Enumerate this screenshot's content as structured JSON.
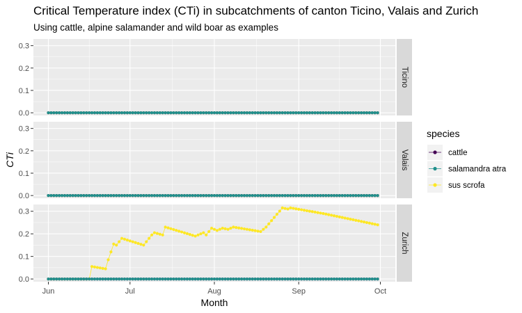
{
  "chart_data": {
    "type": "line",
    "title": "Critical Temperature index (CTi) in subcatchments of canton Ticino, Valais and Zurich",
    "subtitle": "Using cattle, alpine salamander and wild boar as examples",
    "xlabel": "Month",
    "ylabel": "CTi",
    "x_ticks": [
      "Jun",
      "Jul",
      "Aug",
      "Sep",
      "Oct"
    ],
    "x_range": [
      "2020-06-01",
      "2020-10-01"
    ],
    "y_ticks": [
      "0.0",
      "0.1",
      "0.2",
      "0.3"
    ],
    "ylim": [
      -0.012,
      0.33
    ],
    "grid": true,
    "legend": {
      "title": "species",
      "position": "right",
      "entries": [
        "cattle",
        "salamandra atra",
        "sus scrofa"
      ]
    },
    "facets": [
      "Ticino",
      "Valais",
      "Zurich"
    ],
    "colors": {
      "cattle": "#440154",
      "salamandra atra": "#21908C",
      "sus scrofa": "#FDE725",
      "panel_bg": "#EBEBEB",
      "strip_bg": "#D9D9D9",
      "grid": "#FFFFFF",
      "tick_text": "#4D4D4D"
    },
    "series": [
      {
        "name": "cattle",
        "facet": "all",
        "x_start": "2020-06-01",
        "x_end": "2020-09-30",
        "value": 0
      },
      {
        "name": "salamandra atra",
        "facet": "all",
        "x_start": "2020-06-01",
        "x_end": "2020-09-30",
        "value": 0
      },
      {
        "name": "sus scrofa",
        "facet": "Ticino",
        "x_start": "2020-06-01",
        "x_end": "2020-09-30",
        "value": 0
      },
      {
        "name": "sus scrofa",
        "facet": "Valais",
        "x_start": "2020-06-01",
        "x_end": "2020-09-30",
        "value": 0
      },
      {
        "name": "sus scrofa",
        "facet": "Zurich",
        "points": [
          [
            "2020-06-01",
            0
          ],
          [
            "2020-06-16",
            0
          ],
          [
            "2020-06-17",
            0.055
          ],
          [
            "2020-06-22",
            0.045
          ],
          [
            "2020-06-23",
            0.085
          ],
          [
            "2020-06-24",
            0.12
          ],
          [
            "2020-06-25",
            0.155
          ],
          [
            "2020-06-26",
            0.15
          ],
          [
            "2020-06-28",
            0.18
          ],
          [
            "2020-07-06",
            0.15
          ],
          [
            "2020-07-08",
            0.18
          ],
          [
            "2020-07-09",
            0.195
          ],
          [
            "2020-07-10",
            0.205
          ],
          [
            "2020-07-13",
            0.195
          ],
          [
            "2020-07-14",
            0.23
          ],
          [
            "2020-07-25",
            0.19
          ],
          [
            "2020-07-28",
            0.205
          ],
          [
            "2020-07-29",
            0.195
          ],
          [
            "2020-07-31",
            0.225
          ],
          [
            "2020-08-02",
            0.215
          ],
          [
            "2020-08-04",
            0.225
          ],
          [
            "2020-08-06",
            0.22
          ],
          [
            "2020-08-08",
            0.23
          ],
          [
            "2020-08-18",
            0.21
          ],
          [
            "2020-08-20",
            0.23
          ],
          [
            "2020-08-26",
            0.315
          ],
          [
            "2020-08-28",
            0.31
          ],
          [
            "2020-08-29",
            0.315
          ],
          [
            "2020-09-10",
            0.29
          ],
          [
            "2020-09-30",
            0.24
          ]
        ]
      }
    ]
  }
}
